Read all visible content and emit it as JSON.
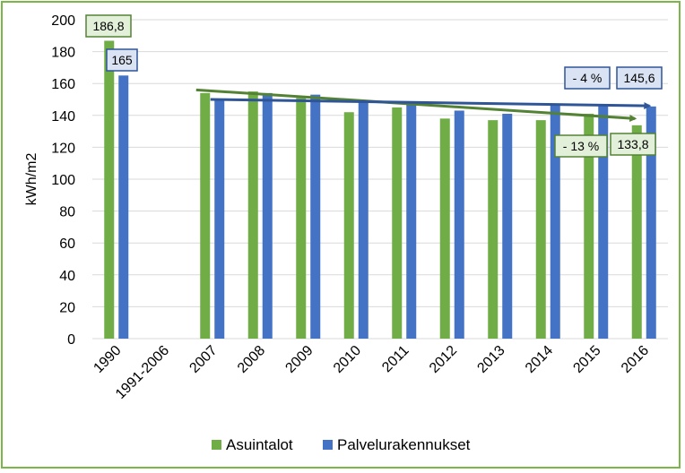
{
  "chart_data": {
    "type": "bar",
    "title": "",
    "xlabel": "",
    "ylabel": "kWh/m2",
    "ylim": [
      0,
      200
    ],
    "yticks": [
      "0",
      "20",
      "40",
      "60",
      "80",
      "100",
      "120",
      "140",
      "160",
      "180",
      "200"
    ],
    "categories": [
      "1990",
      "1991-2006",
      "2007",
      "2008",
      "2009",
      "2010",
      "2011",
      "2012",
      "2013",
      "2014",
      "2015",
      "2016"
    ],
    "series": [
      {
        "name": "Asuintalot",
        "color": "#70ad47",
        "values": [
          186.8,
          null,
          154,
          155,
          151,
          142,
          145,
          138,
          137,
          137,
          141,
          133.8
        ]
      },
      {
        "name": "Palvelurakennukset",
        "color": "#4472c4",
        "values": [
          165,
          null,
          150,
          154,
          153,
          149,
          148,
          143,
          141,
          147,
          146,
          145.6
        ]
      }
    ],
    "grid": true,
    "legend": "bottom",
    "annotations": [
      {
        "text": "186,8",
        "series": "Asuintalot",
        "category": "1990"
      },
      {
        "text": "165",
        "series": "Palvelurakennukset",
        "category": "1990"
      },
      {
        "text": "- 4 %",
        "series": "Palvelurakennukset",
        "category": "2015"
      },
      {
        "text": "145,6",
        "series": "Palvelurakennukset",
        "category": "2016"
      },
      {
        "text": "- 13 %",
        "series": "Asuintalot",
        "category": "2015"
      },
      {
        "text": "133,8",
        "series": "Asuintalot",
        "category": "2016"
      }
    ],
    "trendlines": [
      {
        "series": "Asuintalot",
        "color": "#548235",
        "from": [
          "2007",
          156
        ],
        "to": [
          "2016",
          138
        ]
      },
      {
        "series": "Palvelurakennukset",
        "color": "#2f5597",
        "from": [
          "2007",
          150
        ],
        "to": [
          "2016",
          146
        ]
      }
    ]
  }
}
